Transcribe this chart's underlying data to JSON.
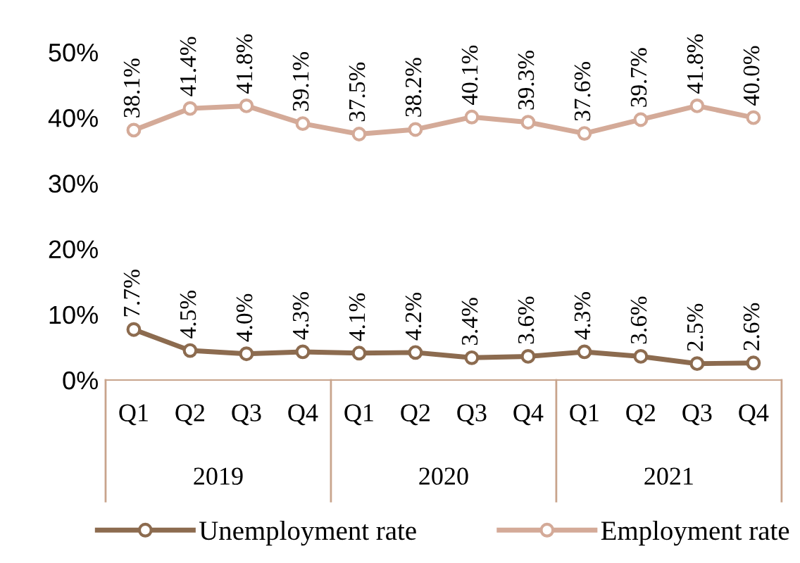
{
  "chart_data": {
    "type": "line",
    "categories": [
      "Q1",
      "Q2",
      "Q3",
      "Q4",
      "Q1",
      "Q2",
      "Q3",
      "Q4",
      "Q1",
      "Q2",
      "Q3",
      "Q4"
    ],
    "annotations": [
      "2019",
      "2020",
      "2021"
    ],
    "series": [
      {
        "name": "Unemployment rate",
        "color": "#8c6b4f",
        "values": [
          7.7,
          4.5,
          4.0,
          4.3,
          4.1,
          4.2,
          3.4,
          3.6,
          4.3,
          3.6,
          2.5,
          2.6
        ],
        "value_labels": [
          "7.7%",
          "4.5%",
          "4.0%",
          "4.3%",
          "4.1%",
          "4.2%",
          "3.4%",
          "3.6%",
          "4.3%",
          "3.6%",
          "2.5%",
          "2.6%"
        ]
      },
      {
        "name": "Employment rate",
        "color": "#d4aa98",
        "values": [
          38.1,
          41.4,
          41.8,
          39.1,
          37.5,
          38.2,
          40.1,
          39.3,
          37.6,
          39.7,
          41.8,
          40.0
        ],
        "value_labels": [
          "38.1%",
          "41.4%",
          "41.8%",
          "39.1%",
          "37.5%",
          "38.2%",
          "40.1%",
          "39.3%",
          "37.6%",
          "39.7%",
          "41.8%",
          "40.0%"
        ]
      }
    ],
    "ylim": [
      0,
      50
    ],
    "yticks": [
      {
        "value": 0,
        "label": "0%"
      },
      {
        "value": 10,
        "label": "10%"
      },
      {
        "value": 20,
        "label": "20%"
      },
      {
        "value": 30,
        "label": "30%"
      },
      {
        "value": 40,
        "label": "40%"
      },
      {
        "value": 50,
        "label": "50%"
      }
    ],
    "marker": "circle",
    "line_style": "solid",
    "grid": false,
    "legend": "bottom"
  }
}
